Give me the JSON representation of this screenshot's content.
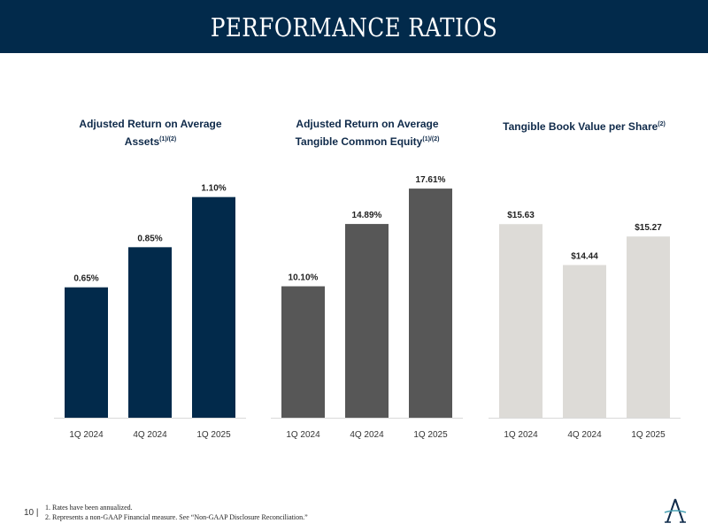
{
  "title": "PERFORMANCE RATIOS",
  "colors": {
    "header": "#022a4b",
    "series": [
      "#022a4b",
      "#575757",
      "#dddbd7"
    ]
  },
  "chart_data": [
    {
      "type": "bar",
      "title": "Adjusted Return on Average Assets",
      "title_sup": "(1)/(2)",
      "title_line1": "Adjusted Return on Average",
      "title_line2": "Assets",
      "categories": [
        "1Q 2024",
        "4Q 2024",
        "1Q 2025"
      ],
      "values": [
        0.65,
        0.85,
        1.1
      ],
      "labels": [
        "0.65%",
        "0.85%",
        "1.10%"
      ],
      "ylim": [
        0,
        1.2
      ],
      "grid": false
    },
    {
      "type": "bar",
      "title": "Adjusted Return on Average Tangible Common Equity",
      "title_sup": "(1)/(2)",
      "title_line1": "Adjusted Return on Average",
      "title_line2": "Tangible Common Equity",
      "categories": [
        "1Q 2024",
        "4Q 2024",
        "1Q 2025"
      ],
      "values": [
        10.1,
        14.89,
        17.61
      ],
      "labels": [
        "10.10%",
        "14.89%",
        "17.61%"
      ],
      "ylim": [
        0,
        18.5
      ],
      "grid": false
    },
    {
      "type": "bar",
      "title": "Tangible Book Value per Share",
      "title_sup": "(2)",
      "title_line1": "Tangible Book Value per Share",
      "title_line2": "",
      "categories": [
        "1Q 2024",
        "4Q 2024",
        "1Q 2025"
      ],
      "values": [
        15.63,
        14.44,
        15.27
      ],
      "labels": [
        "$15.63",
        "$14.44",
        "$15.27"
      ],
      "ylim": [
        10,
        17
      ],
      "grid": false
    }
  ],
  "footer": {
    "page": "10 |",
    "notes": [
      "1. Rates have been annualized.",
      "2. Represents a non-GAAP Financial measure. See “Non-GAAP Disclosure Reconciliation.”"
    ]
  }
}
